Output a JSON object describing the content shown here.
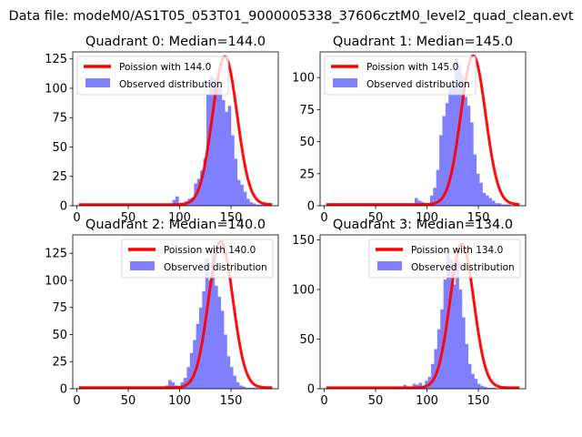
{
  "suptitle": "Data file: modeM0/AS1T05_053T01_9000005338_37606cztM0_level2_quad_clean.evt",
  "colors": {
    "poisson": "#ff0000",
    "observed": "#8080ff"
  },
  "chart_data": [
    {
      "type": "bar",
      "quadrant": 0,
      "title": "Quadrant 0: Median=144.0",
      "median": 144.0,
      "xlim": [
        -4,
        196
      ],
      "ylim": [
        0,
        131
      ],
      "xticks": [
        0,
        50,
        100,
        150
      ],
      "yticks": [
        0,
        25,
        50,
        75,
        100,
        125
      ],
      "legend": {
        "location": "top-left",
        "poisson_label": "Poission with 144.0",
        "observed_label": "Observed distribution"
      },
      "hist": {
        "bin_start": 90,
        "bin_width": 3,
        "counts": [
          1,
          5,
          8,
          1,
          2,
          4,
          6,
          7,
          19,
          23,
          30,
          40,
          95,
          110,
          108,
          100,
          102,
          90,
          80,
          85,
          60,
          40,
          22,
          18,
          12,
          6,
          3,
          2,
          1,
          1,
          1
        ],
        "flat_level": 1
      },
      "poisson_mean": 144.0,
      "curve_scale": 126
    },
    {
      "type": "bar",
      "quadrant": 1,
      "title": "Quadrant 1: Median=145.0",
      "median": 145.0,
      "xlim": [
        -4,
        196
      ],
      "ylim": [
        0,
        120
      ],
      "xticks": [
        0,
        50,
        100,
        150
      ],
      "yticks": [
        0,
        25,
        50,
        75,
        100
      ],
      "legend": {
        "location": "top-left",
        "poisson_label": "Poission with 145.0",
        "observed_label": "Observed distribution"
      },
      "hist": {
        "bin_start": 88,
        "bin_width": 3,
        "counts": [
          6,
          4,
          3,
          2,
          2,
          8,
          14,
          28,
          55,
          70,
          80,
          95,
          92,
          115,
          110,
          102,
          85,
          78,
          65,
          40,
          25,
          18,
          10,
          8,
          6,
          4,
          2,
          2,
          1,
          1,
          1
        ],
        "flat_level": 1
      },
      "poisson_mean": 145.0,
      "curve_scale": 116
    },
    {
      "type": "bar",
      "quadrant": 2,
      "title": "Quadrant 2: Median=140.0",
      "median": 140.0,
      "xlim": [
        -4,
        196
      ],
      "ylim": [
        0,
        142
      ],
      "xticks": [
        0,
        50,
        100,
        150
      ],
      "yticks": [
        0,
        25,
        50,
        75,
        100,
        125
      ],
      "legend": {
        "location": "top-right",
        "poisson_label": "Poission with 140.0",
        "observed_label": "Observed distribution"
      },
      "hist": {
        "bin_start": 80,
        "bin_width": 3,
        "counts": [
          2,
          1,
          3,
          8,
          6,
          3,
          2,
          6,
          10,
          20,
          33,
          45,
          60,
          75,
          90,
          120,
          100,
          130,
          95,
          85,
          72,
          50,
          30,
          20,
          12,
          6,
          3,
          2,
          1,
          1,
          1,
          1
        ],
        "flat_level": 1
      },
      "poisson_mean": 140.0,
      "curve_scale": 135
    },
    {
      "type": "bar",
      "quadrant": 3,
      "title": "Quadrant 3: Median=134.0",
      "median": 134.0,
      "xlim": [
        -4,
        196
      ],
      "ylim": [
        0,
        155
      ],
      "xticks": [
        0,
        50,
        100,
        150
      ],
      "yticks": [
        0,
        50,
        100,
        150
      ],
      "legend": {
        "location": "top-right",
        "poisson_label": "Poission with 134.0",
        "observed_label": "Observed distribution"
      },
      "hist": {
        "bin_start": 62,
        "bin_width": 3,
        "counts": [
          1,
          1,
          2,
          2,
          1,
          4,
          2,
          1,
          5,
          4,
          6,
          3,
          8,
          12,
          25,
          40,
          60,
          80,
          110,
          140,
          130,
          105,
          130,
          100,
          72,
          45,
          25,
          15,
          10,
          5,
          3,
          2,
          1,
          1,
          1
        ],
        "flat_level": 1
      },
      "poisson_mean": 134.0,
      "curve_scale": 145
    }
  ]
}
